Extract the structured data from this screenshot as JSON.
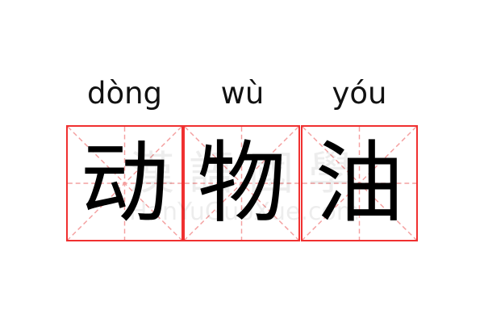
{
  "entries": [
    {
      "pinyin": "dòng",
      "char": "动"
    },
    {
      "pinyin": "wù",
      "char": "物"
    },
    {
      "pinyin": "yóu",
      "char": "油"
    }
  ],
  "watermark": {
    "cn": "漢語國學",
    "en": "HanYuGuoXue.com"
  },
  "colors": {
    "grid": "#f03030",
    "guide": "#f4a0a0",
    "text": "#000000"
  }
}
